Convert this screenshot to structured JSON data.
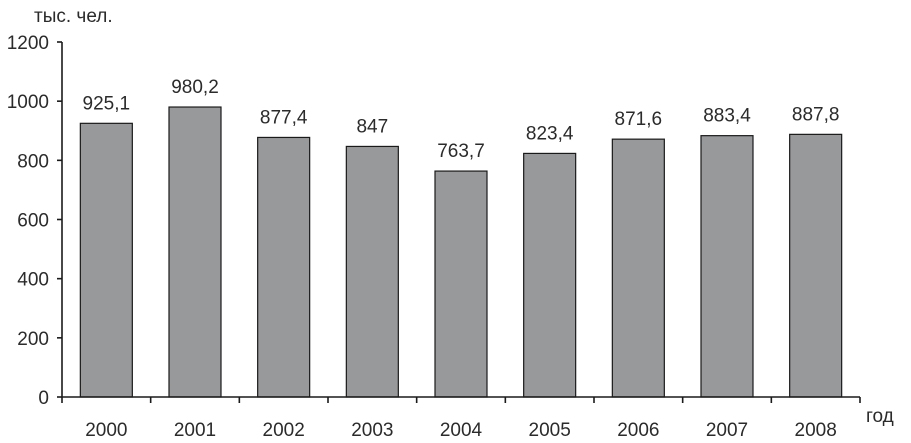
{
  "chart_data": {
    "type": "bar",
    "ylabel": "тыс. чел.",
    "xlabel": "год",
    "categories": [
      "2000",
      "2001",
      "2002",
      "2003",
      "2004",
      "2005",
      "2006",
      "2007",
      "2008"
    ],
    "values": [
      925.1,
      980.2,
      877.4,
      847,
      763.7,
      823.4,
      871.6,
      883.4,
      887.8
    ],
    "data_labels": [
      "925,1",
      "980,2",
      "877,4",
      "847",
      "763,7",
      "823,4",
      "871,6",
      "883,4",
      "887,8"
    ],
    "ylim": [
      0,
      1200
    ],
    "yticks": [
      0,
      200,
      400,
      600,
      800,
      1000,
      1200
    ],
    "grid": false,
    "legend": "none",
    "colors": {
      "bar_fill": "#98999b",
      "bar_stroke": "#1a1a1a",
      "axis": "#1a1a1a",
      "text": "#2b2b2b"
    }
  }
}
